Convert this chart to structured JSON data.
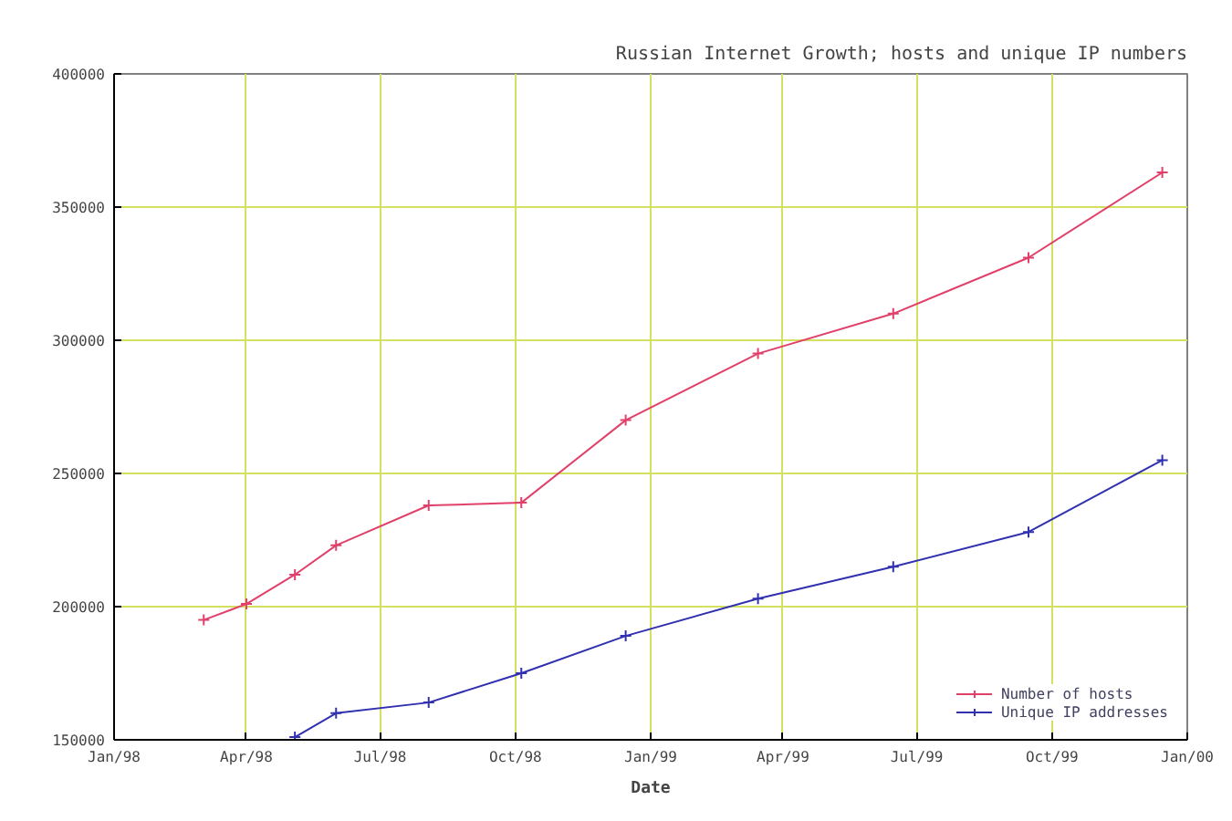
{
  "chart_data": {
    "type": "line",
    "title": "Russian Internet Growth; hosts and unique IP numbers",
    "xlabel": "Date",
    "x": [
      "1998-03-03",
      "1998-04-01",
      "1998-05-04",
      "1998-06-01",
      "1998-08-03",
      "1998-10-05",
      "1998-12-15",
      "1999-03-15",
      "1999-06-15",
      "1999-09-15",
      "1999-12-15"
    ],
    "series": [
      {
        "name": "Number of hosts",
        "color": "#e0406a",
        "values": [
          195000,
          201000,
          212000,
          223000,
          238000,
          239000,
          270000,
          295000,
          310000,
          331000,
          363000
        ]
      },
      {
        "name": "Unique IP addresses",
        "color": "#3030b0",
        "x": [
          "1998-05-04",
          "1998-06-01",
          "1998-08-03",
          "1998-10-05",
          "1998-12-15",
          "1999-03-15",
          "1999-06-15",
          "1999-09-15",
          "1999-12-15"
        ],
        "values": [
          151000,
          160000,
          164000,
          175000,
          189000,
          203000,
          215000,
          228000,
          255000
        ]
      }
    ],
    "xlim": [
      "1998-01-01",
      "2000-01-01"
    ],
    "xticks": [
      {
        "value": "1998-01-01",
        "label": "Jan/98"
      },
      {
        "value": "1998-04-01",
        "label": "Apr/98"
      },
      {
        "value": "1998-07-01",
        "label": "Jul/98"
      },
      {
        "value": "1998-10-01",
        "label": "Oct/98"
      },
      {
        "value": "1999-01-01",
        "label": "Jan/99"
      },
      {
        "value": "1999-04-01",
        "label": "Apr/99"
      },
      {
        "value": "1999-07-01",
        "label": "Jul/99"
      },
      {
        "value": "1999-10-01",
        "label": "Oct/99"
      },
      {
        "value": "2000-01-01",
        "label": "Jan/00"
      }
    ],
    "ylim": [
      150000,
      400000
    ],
    "yticks": [
      150000,
      200000,
      250000,
      300000,
      350000,
      400000
    ],
    "grid": true,
    "legend": "bottom right",
    "marker": "cross",
    "line_style": "solid"
  }
}
